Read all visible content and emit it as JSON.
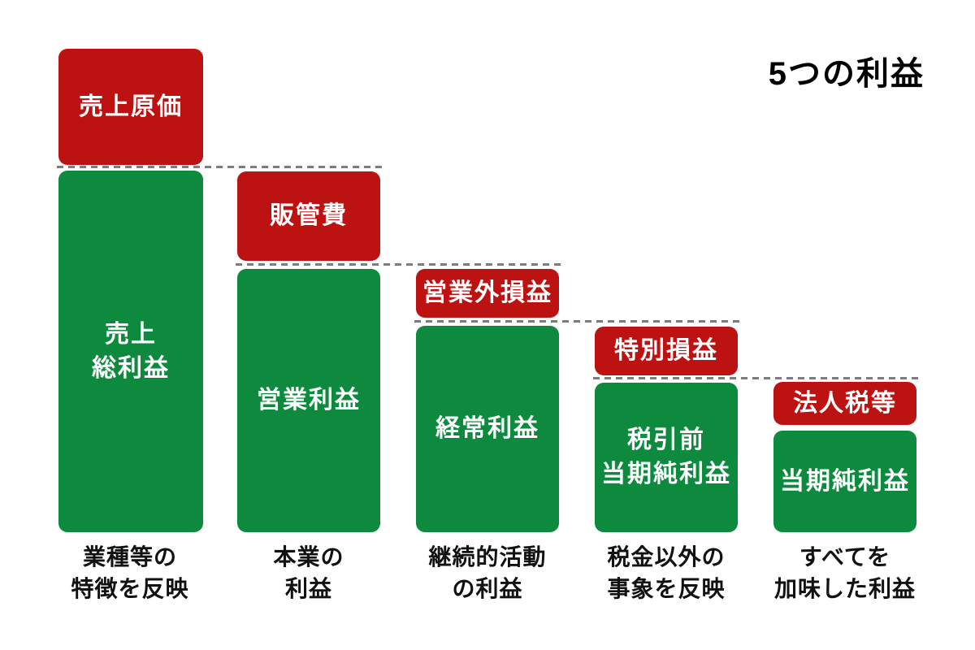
{
  "title": "5つの利益",
  "palette": {
    "expense_red": "#bc1212",
    "profit_green": "#0e8a3e",
    "dashed_line_gray": "#7d7d7d",
    "box_text": "#ffffff",
    "caption_text": "#111111",
    "background": "#ffffff"
  },
  "columns": [
    {
      "expense": {
        "label": "売上原価"
      },
      "profit": {
        "lines": [
          "売上",
          "総利益"
        ]
      },
      "caption": {
        "lines": [
          "業種等の",
          "特徴を反映"
        ]
      }
    },
    {
      "expense": {
        "label": "販管費"
      },
      "profit": {
        "lines": [
          "営業利益"
        ]
      },
      "caption": {
        "lines": [
          "本業の",
          "利益"
        ]
      }
    },
    {
      "expense": {
        "label": "営業外損益"
      },
      "profit": {
        "lines": [
          "経常利益"
        ]
      },
      "caption": {
        "lines": [
          "継続的活動",
          "の利益"
        ]
      }
    },
    {
      "expense": {
        "label": "特別損益"
      },
      "profit": {
        "lines": [
          "税引前",
          "当期純利益"
        ]
      },
      "caption": {
        "lines": [
          "税金以外の",
          "事象を反映"
        ]
      }
    },
    {
      "expense": {
        "label": "法人税等"
      },
      "profit": {
        "lines": [
          "当期純利益"
        ]
      },
      "caption": {
        "lines": [
          "すべてを",
          "加味した利益"
        ]
      }
    }
  ]
}
